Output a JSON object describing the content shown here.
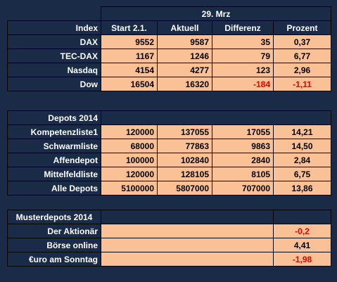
{
  "table1": {
    "date": "29. Mrz",
    "headers": [
      "Index",
      "Start 2.1.",
      "Aktuell",
      "Differenz",
      "Prozent"
    ],
    "rows": [
      {
        "label": "DAX",
        "start": "9552",
        "aktuell": "9587",
        "diff": "35",
        "pct": "0,37"
      },
      {
        "label": "TEC-DAX",
        "start": "1167",
        "aktuell": "1246",
        "diff": "79",
        "pct": "6,77"
      },
      {
        "label": "Nasdaq",
        "start": "4154",
        "aktuell": "4277",
        "diff": "123",
        "pct": "2,96"
      },
      {
        "label": "Dow",
        "start": "16504",
        "aktuell": "16320",
        "diff": "-184",
        "pct": "-1,11"
      }
    ]
  },
  "table2": {
    "title": "Depots 2014",
    "rows": [
      {
        "label": "Kompetenzliste1",
        "start": "120000",
        "aktuell": "137055",
        "diff": "17055",
        "pct": "14,21"
      },
      {
        "label": "Schwarmliste",
        "start": "68000",
        "aktuell": "77863",
        "diff": "9863",
        "pct": "14,50"
      },
      {
        "label": "Affendepot",
        "start": "100000",
        "aktuell": "102840",
        "diff": "2840",
        "pct": "2,84"
      },
      {
        "label": "Mittelfeldliste",
        "start": "120000",
        "aktuell": "128105",
        "diff": "8105",
        "pct": "6,75"
      },
      {
        "label": "Alle Depots",
        "start": "5100000",
        "aktuell": "5807000",
        "diff": "707000",
        "pct": "13,86"
      }
    ]
  },
  "table3": {
    "title": "Musterdepots 2014",
    "rows": [
      {
        "label": "Der Aktionär",
        "pct": "-0,2"
      },
      {
        "label": "Börse online",
        "pct": "4,41"
      },
      {
        "label": "€uro am Sonntag",
        "pct": "-1,98"
      }
    ]
  },
  "colors": {
    "background": "#1a2b48",
    "cell_fill": "#fac096",
    "negative": "#e60000"
  }
}
